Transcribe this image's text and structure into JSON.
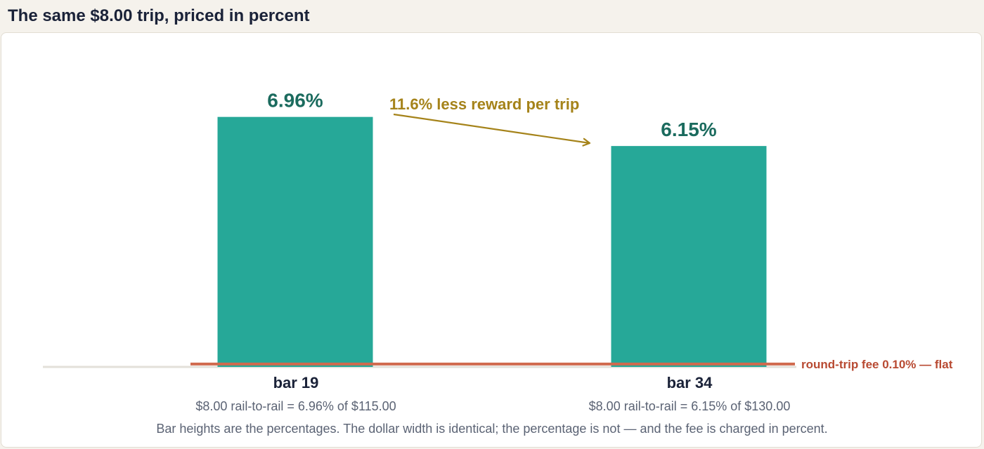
{
  "header": {
    "title": "The same $8.00 trip, priced in percent"
  },
  "chart_data": {
    "type": "bar",
    "categories": [
      "bar 19",
      "bar 34"
    ],
    "values": [
      6.96,
      6.15
    ],
    "value_labels": [
      "6.96%",
      "6.15%"
    ],
    "sub_labels": [
      "$8.00 rail-to-rail = 6.96% of $115.00",
      "$8.00 rail-to-rail = 6.15% of $130.00"
    ],
    "ylim": [
      0,
      8
    ],
    "reference_line": {
      "value": 0.1,
      "label": "round-trip fee 0.10% — flat"
    },
    "annotation": {
      "text": "11.6% less reward per trip"
    },
    "caption": "Bar heights are the percentages. The dollar width is identical; the percentage is not — and the fee is charged in percent.",
    "grid": false,
    "colors": {
      "bar": "#26a898",
      "value_text": "#1b6b5e",
      "fee_line": "#d06a4e",
      "fee_text": "#b84a32",
      "annotation": "#a5831a",
      "baseline": "#e3e0da"
    }
  }
}
